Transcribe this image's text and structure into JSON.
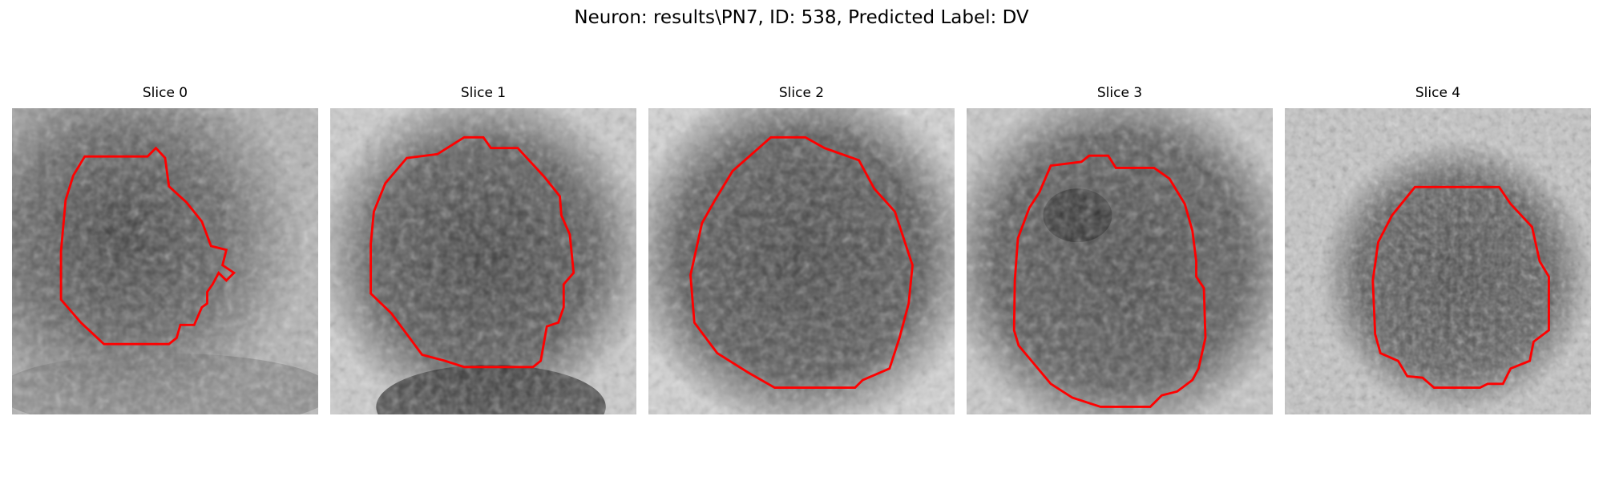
{
  "figure": {
    "title": "Neuron: results\\PN7, ID: 538, Predicted Label: DV",
    "contour_color": "#ff0000"
  },
  "slices": [
    {
      "title": "Slice 0"
    },
    {
      "title": "Slice 1"
    },
    {
      "title": "Slice 2"
    },
    {
      "title": "Slice 3"
    },
    {
      "title": "Slice 4"
    }
  ]
}
